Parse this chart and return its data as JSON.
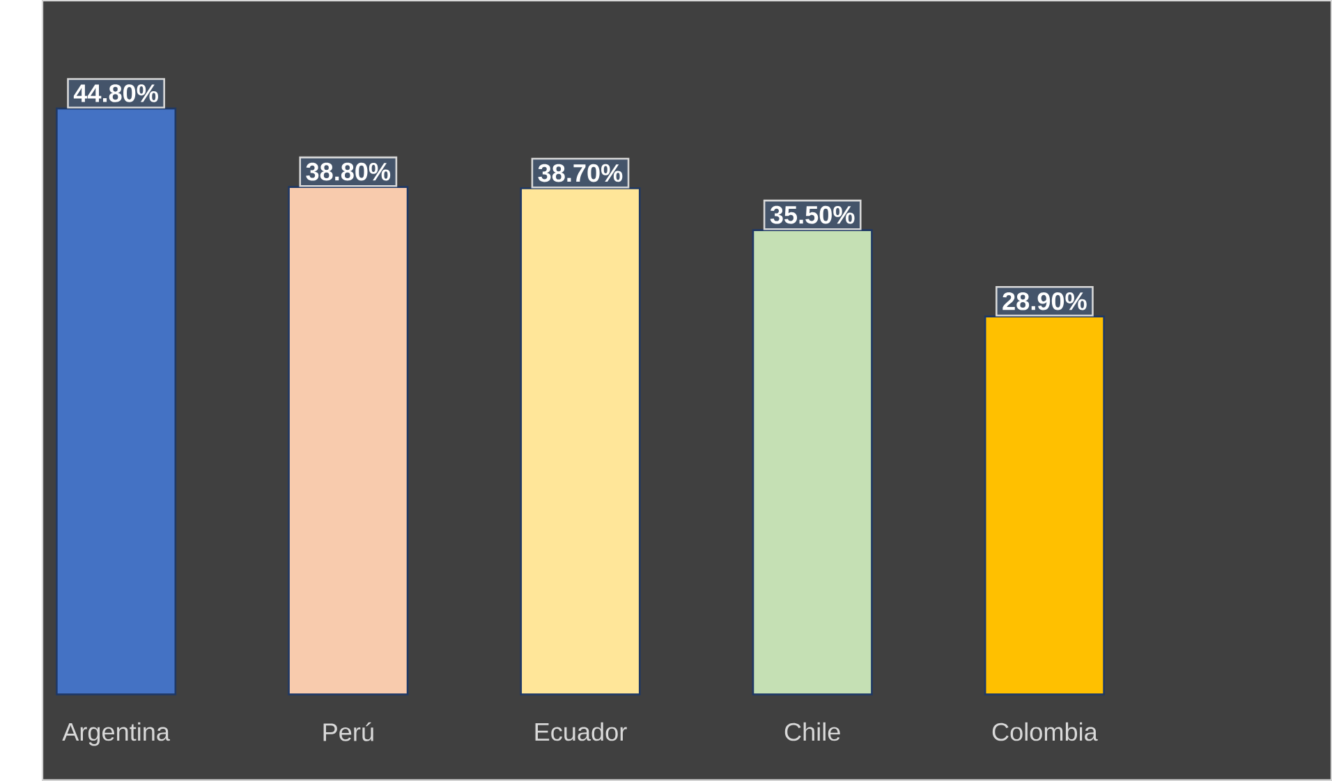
{
  "chart_data": {
    "type": "bar",
    "categories": [
      "Argentina",
      "Perú",
      "Ecuador",
      "Chile",
      "Colombia"
    ],
    "values": [
      44.8,
      38.8,
      38.7,
      35.5,
      28.9
    ],
    "value_labels": [
      "44.80%",
      "38.80%",
      "38.70%",
      "35.50%",
      "28.90%"
    ],
    "colors": [
      "#4472c4",
      "#f8cbad",
      "#ffe699",
      "#c5e0b4",
      "#ffc000"
    ]
  }
}
